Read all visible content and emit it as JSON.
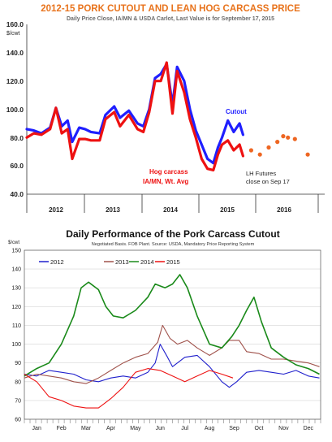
{
  "chart_data": [
    {
      "type": "line",
      "title": "2012-15 PORK CUTOUT AND LEAN HOG CARCASS PRICE",
      "subtitle": "Daily Price Close, IA/MN & USDA Carlot, Last Value is for September 17, 2015",
      "ylabel": "$/cwt",
      "ylim": [
        40,
        160
      ],
      "yticks": [
        "40.0",
        "60.0",
        "80.0",
        "100.0",
        "120.0",
        "140.0",
        "160.0"
      ],
      "x_groups": [
        "2012",
        "2013",
        "2014",
        "2015",
        "2016"
      ],
      "x_range": [
        2012,
        2017
      ],
      "series": [
        {
          "name": "Cutout",
          "color": "#1f1fff",
          "x": [
            2012.0,
            2012.12,
            2012.25,
            2012.4,
            2012.5,
            2012.6,
            2012.7,
            2012.78,
            2012.9,
            2013.0,
            2013.1,
            2013.25,
            2013.35,
            2013.5,
            2013.6,
            2013.75,
            2013.9,
            2014.0,
            2014.1,
            2014.2,
            2014.3,
            2014.4,
            2014.5,
            2014.58,
            2014.7,
            2014.8,
            2014.9,
            2015.0,
            2015.1,
            2015.2,
            2015.28,
            2015.35,
            2015.45,
            2015.55,
            2015.65,
            2015.71
          ],
          "y": [
            86,
            85,
            83,
            87,
            101,
            88,
            92,
            77,
            87,
            86,
            84,
            83,
            96,
            102,
            94,
            99,
            90,
            88,
            100,
            122,
            125,
            132,
            103,
            130,
            120,
            100,
            85,
            75,
            65,
            62,
            73,
            80,
            92,
            84,
            90,
            82
          ]
        },
        {
          "name": "Hog carcass IA/MN, Wt. Avg",
          "color": "#ee1111",
          "x": [
            2012.0,
            2012.12,
            2012.25,
            2012.4,
            2012.5,
            2012.6,
            2012.7,
            2012.78,
            2012.9,
            2013.0,
            2013.1,
            2013.25,
            2013.35,
            2013.5,
            2013.6,
            2013.75,
            2013.9,
            2014.0,
            2014.1,
            2014.2,
            2014.3,
            2014.4,
            2014.5,
            2014.58,
            2014.7,
            2014.8,
            2014.9,
            2015.0,
            2015.1,
            2015.2,
            2015.28,
            2015.35,
            2015.45,
            2015.55,
            2015.65,
            2015.71
          ],
          "y": [
            80,
            83,
            82,
            86,
            101,
            83,
            86,
            65,
            79,
            79,
            78,
            78,
            93,
            98,
            88,
            96,
            86,
            84,
            98,
            120,
            120,
            133,
            97,
            127,
            112,
            93,
            80,
            65,
            58,
            57,
            68,
            75,
            78,
            71,
            75,
            67
          ]
        },
        {
          "name": "LH Futures close on Sep 17",
          "color": "#ee6622",
          "x": [
            2015.85,
            2016.0,
            2016.15,
            2016.3,
            2016.4,
            2016.48,
            2016.6,
            2016.82
          ],
          "y": [
            71,
            68,
            73,
            77,
            81,
            80,
            79,
            68
          ]
        }
      ],
      "annotations": [
        "Cutout",
        "Hog carcass",
        "IA/MN, Wt. Avg",
        "LH Futures",
        "close on Sep 17"
      ]
    },
    {
      "type": "line",
      "title": "Daily Performance of the Pork Carcass Cutout",
      "subtitle": "Negotiated Basis. FOB Plant. Source: USDA, Mandatory Price Reporting System",
      "ylabel": "$/cwt",
      "ylim": [
        60,
        150
      ],
      "yticks": [
        "60",
        "70",
        "80",
        "90",
        "100",
        "110",
        "120",
        "130",
        "140",
        "150"
      ],
      "categories": [
        "Jan",
        "Feb",
        "Mar",
        "Apr",
        "May",
        "Jun",
        "Jul",
        "Aug",
        "Sep",
        "Oct",
        "Nov",
        "Dec"
      ],
      "legend": "top-left",
      "series": [
        {
          "name": "2012",
          "color": "#1f1fcc",
          "x": [
            0,
            0.5,
            1,
            1.5,
            2,
            2.5,
            3,
            3.5,
            4,
            4.5,
            5,
            5.3,
            5.5,
            5.8,
            6,
            6.5,
            7,
            7.5,
            8,
            8.3,
            8.6,
            9,
            9.5,
            10,
            10.5,
            11,
            11.5,
            11.95
          ],
          "y": [
            84,
            83,
            86,
            85,
            84,
            81,
            80,
            82,
            83,
            82,
            85,
            90,
            100,
            93,
            88,
            93,
            94,
            88,
            80,
            77,
            80,
            85,
            86,
            85,
            84,
            86,
            83,
            82
          ]
        },
        {
          "name": "2013",
          "color": "#a0524b",
          "x": [
            0,
            0.5,
            1,
            1.5,
            2,
            2.5,
            3,
            3.5,
            4,
            4.5,
            5,
            5.4,
            5.6,
            5.9,
            6.2,
            6.6,
            7,
            7.5,
            8,
            8.3,
            8.7,
            9,
            9.5,
            10,
            10.5,
            11,
            11.5,
            11.95
          ],
          "y": [
            82,
            84,
            83,
            82,
            80,
            79,
            82,
            86,
            90,
            93,
            95,
            101,
            110,
            103,
            100,
            102,
            98,
            94,
            98,
            102,
            102,
            96,
            95,
            92,
            92,
            91,
            90,
            88
          ]
        },
        {
          "name": "2014",
          "color": "#1a8a1a",
          "x": [
            0,
            0.5,
            1,
            1.5,
            2,
            2.3,
            2.6,
            3,
            3.3,
            3.6,
            4,
            4.5,
            5,
            5.3,
            5.7,
            6,
            6.3,
            6.6,
            7,
            7.5,
            8,
            8.4,
            8.7,
            9,
            9.3,
            9.6,
            10,
            10.5,
            11,
            11.5,
            11.95
          ],
          "y": [
            83,
            87,
            90,
            100,
            115,
            130,
            133,
            129,
            120,
            115,
            114,
            118,
            125,
            132,
            130,
            132,
            137,
            130,
            115,
            100,
            98,
            104,
            110,
            118,
            125,
            112,
            98,
            93,
            89,
            87,
            84
          ]
        },
        {
          "name": "2015",
          "color": "#ee1111",
          "x": [
            0,
            0.5,
            1,
            1.5,
            2,
            2.5,
            3,
            3.5,
            4,
            4.5,
            5,
            5.5,
            6,
            6.5,
            7,
            7.5,
            8,
            8.45
          ],
          "y": [
            84,
            80,
            72,
            70,
            67,
            66,
            66,
            71,
            77,
            85,
            87,
            86,
            83,
            80,
            83,
            86,
            84,
            82
          ]
        }
      ]
    }
  ]
}
